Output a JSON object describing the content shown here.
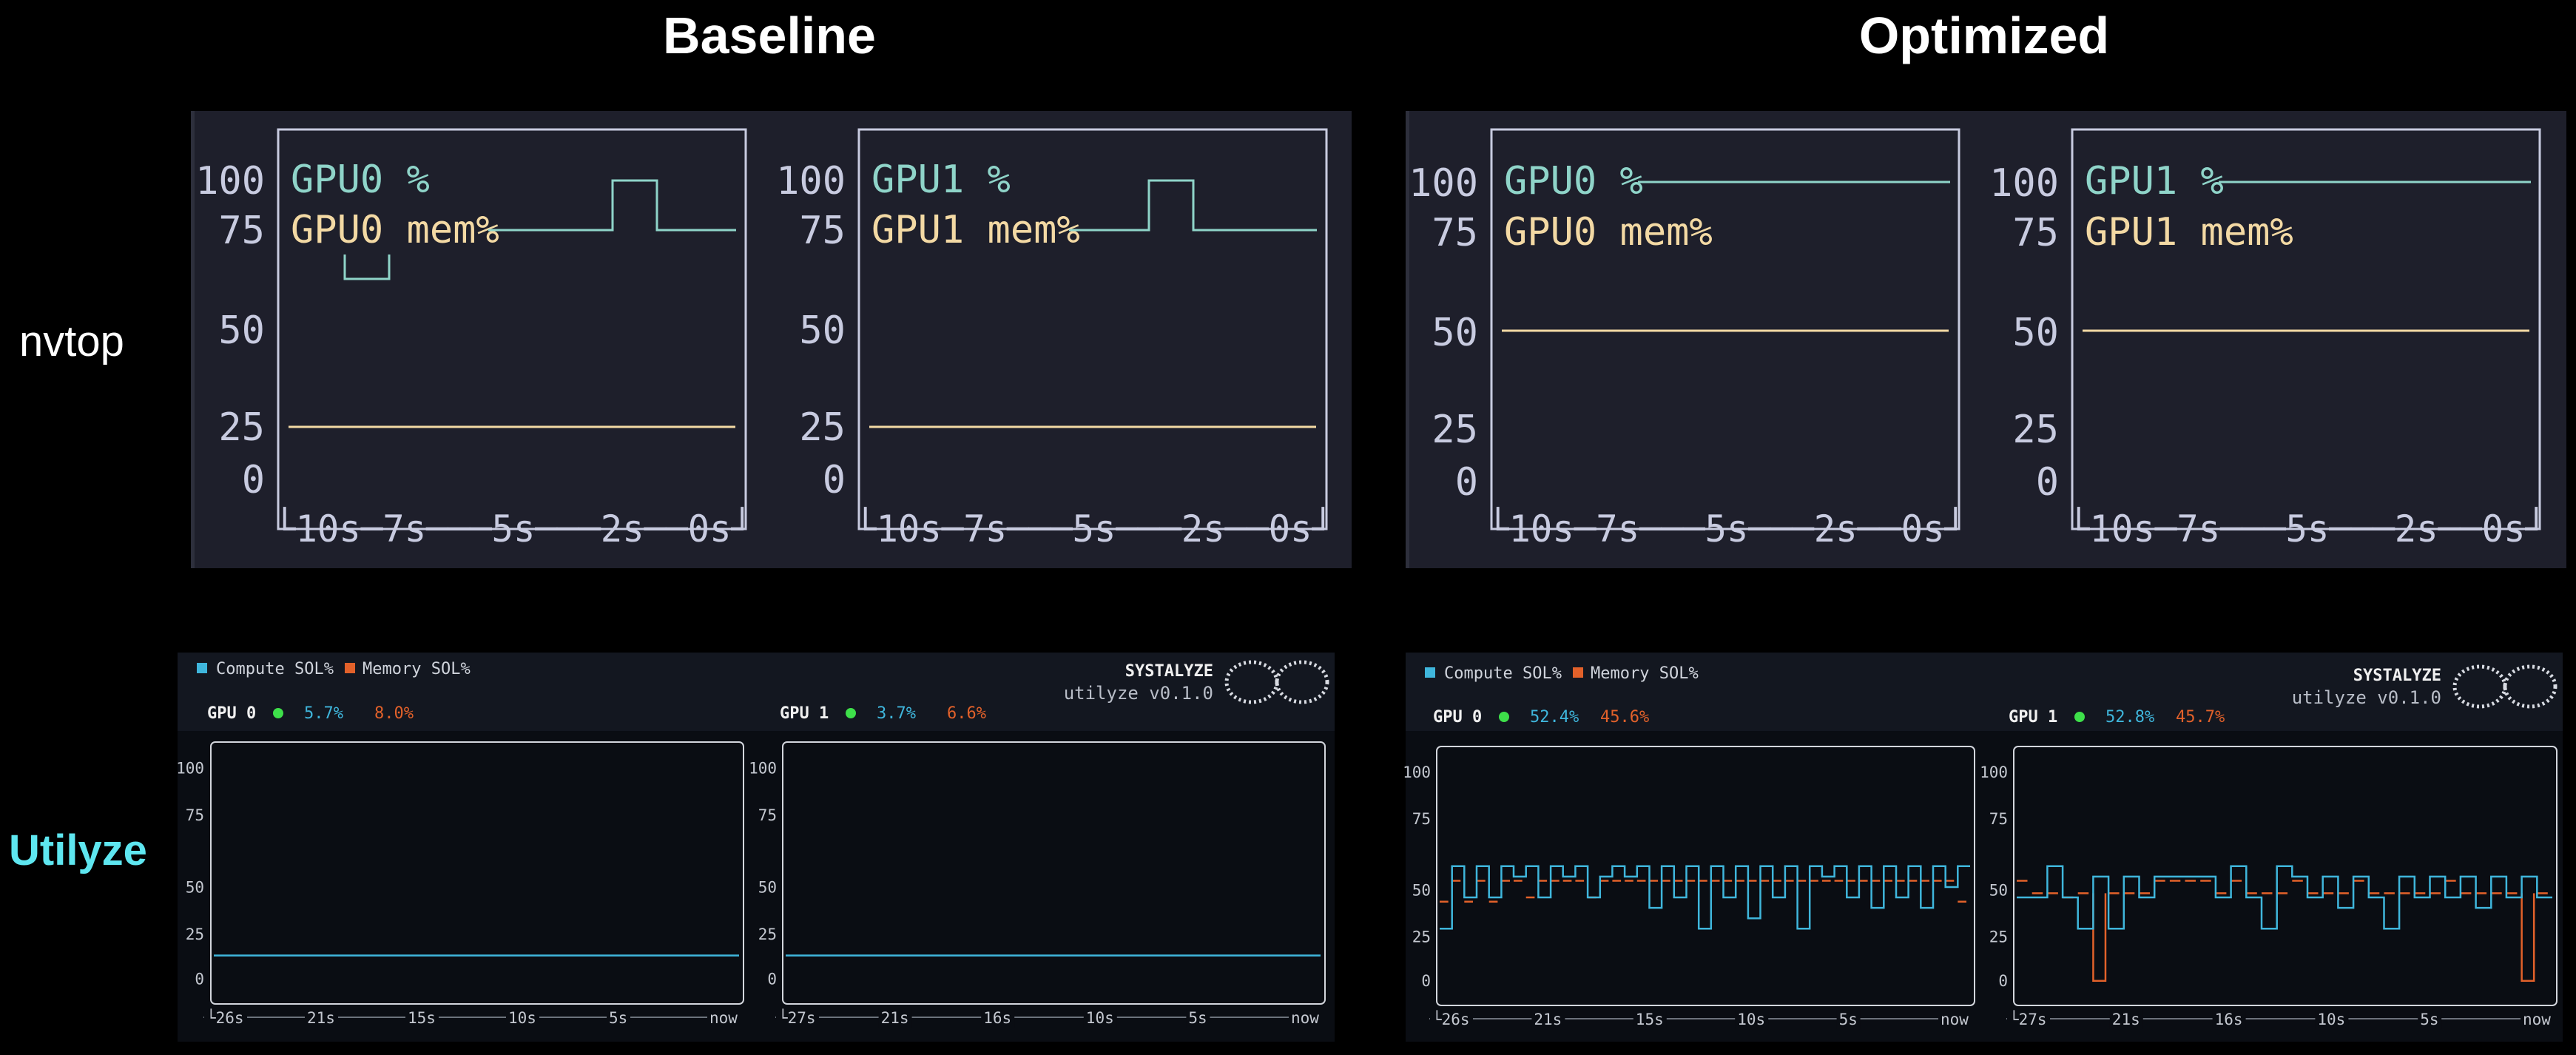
{
  "columns": [
    "Baseline",
    "Optimized"
  ],
  "rows": [
    {
      "label": "nvtop",
      "color": "#ffffff"
    },
    {
      "label": "Utilyze",
      "color": "#5ee6f0"
    }
  ],
  "nvtop": {
    "colors": {
      "gpu": "#8fd4c9",
      "mem": "#f3d9a4",
      "axis": "#c8cbe0",
      "bg": "#1e1f2b"
    },
    "y_ticks": [
      "100",
      "75",
      "50",
      "25",
      "0"
    ],
    "x_axis_text": "└10s─7s───5s───2s──0s┘",
    "panels": [
      {
        "gpu_label": "GPU0 %",
        "mem_label": "GPU0 mem%",
        "mem_value": 25
      },
      {
        "gpu_label": "GPU1 %",
        "mem_label": "GPU1 mem%",
        "mem_value": 25
      },
      {
        "gpu_label": "GPU0 %",
        "mem_label": "GPU0 mem%",
        "mem_value": 50
      },
      {
        "gpu_label": "GPU1 %",
        "mem_label": "GPU1 mem%",
        "mem_value": 50
      }
    ]
  },
  "utilyze": {
    "colors": {
      "compute": "#3fb6dc",
      "memory": "#e2612a",
      "dot": "#3ee04a",
      "bg": "#0a0d13",
      "header": "#161a24"
    },
    "legend_compute": "Compute SOL%",
    "legend_memory": "Memory SOL%",
    "brand": "SYSTALYZE",
    "version": "utilyze v0.1.0",
    "y_ticks": [
      "100",
      "75",
      "50",
      "25",
      "0"
    ],
    "panels": [
      {
        "gpu": "GPU 0",
        "compute": "5.7%",
        "memory": "8.0%",
        "x_ticks": [
          "└26s",
          "21s",
          "15s",
          "10s",
          "5s",
          "now"
        ],
        "compute_series": "flat_low"
      },
      {
        "gpu": "GPU 1",
        "compute": "3.7%",
        "memory": "6.6%",
        "x_ticks": [
          "└27s",
          "21s",
          "16s",
          "10s",
          "5s",
          "now"
        ],
        "compute_series": "flat_low"
      },
      {
        "gpu": "GPU 0",
        "compute": "52.4%",
        "memory": "45.6%",
        "x_ticks": [
          "└26s",
          "21s",
          "15s",
          "10s",
          "5s",
          "now"
        ],
        "compute_series": "square_a"
      },
      {
        "gpu": "GPU 1",
        "compute": "52.8%",
        "memory": "45.7%",
        "x_ticks": [
          "└27s",
          "21s",
          "16s",
          "10s",
          "5s",
          "now"
        ],
        "compute_series": "square_b"
      }
    ]
  }
}
